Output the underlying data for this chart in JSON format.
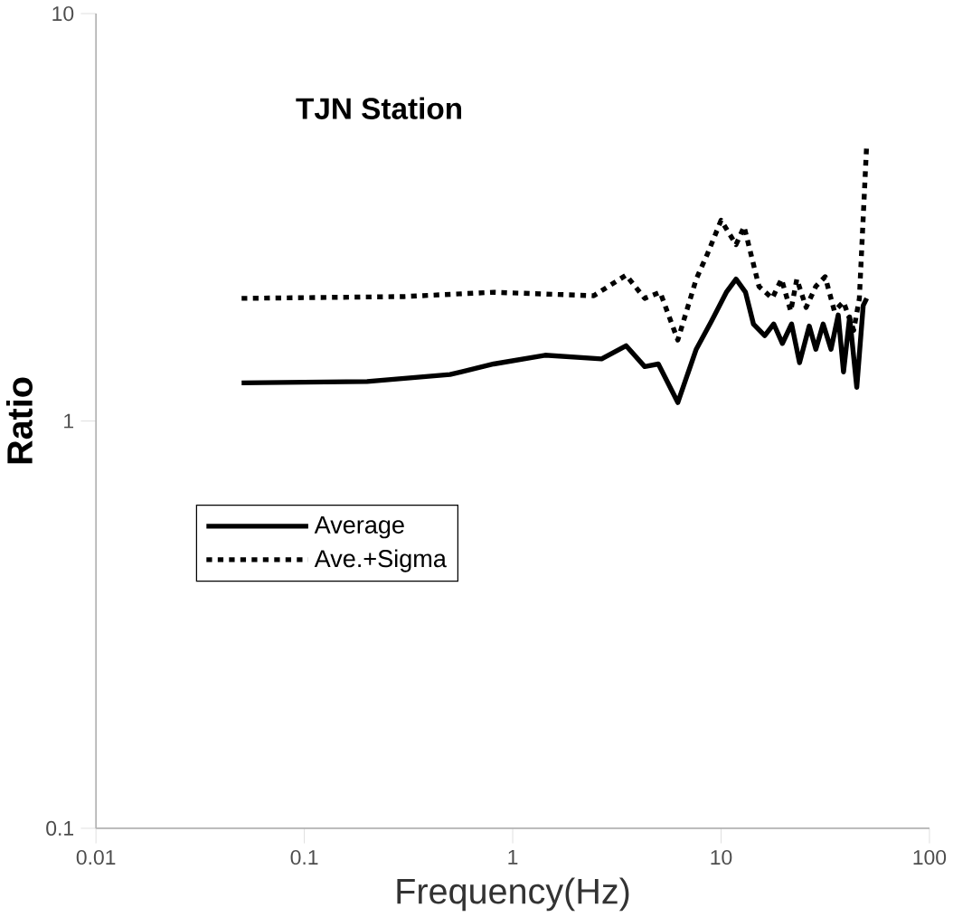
{
  "chart_data": {
    "type": "line",
    "title": "TJN Station",
    "xlabel": "Frequency(Hz)",
    "ylabel": "Ratio",
    "log": "xy",
    "xlim": [
      0.01,
      100
    ],
    "ylim": [
      0.1,
      10
    ],
    "xticks": [
      0.01,
      0.1,
      1,
      10,
      100
    ],
    "yticks": [
      0.1,
      1,
      10
    ],
    "grid": false,
    "legend": "left",
    "marker": "none",
    "series": [
      {
        "name": "Average",
        "color": "#000000",
        "line_style": "solid",
        "x": [
          0.05,
          0.2,
          0.5,
          0.81,
          1.43,
          2.67,
          3.5,
          4.3,
          5.0,
          6.2,
          7.6,
          9.0,
          10.6,
          11.8,
          13.1,
          14.3,
          16.2,
          17.9,
          19.7,
          21.8,
          23.8,
          26.5,
          28.5,
          30.9,
          33.7,
          36.5,
          38.7,
          41.4,
          44.8,
          48.1,
          50
        ],
        "values": [
          1.24,
          1.25,
          1.3,
          1.38,
          1.45,
          1.42,
          1.53,
          1.36,
          1.38,
          1.11,
          1.5,
          1.76,
          2.07,
          2.23,
          2.07,
          1.73,
          1.62,
          1.73,
          1.55,
          1.73,
          1.39,
          1.71,
          1.5,
          1.73,
          1.5,
          1.82,
          1.32,
          1.8,
          1.21,
          1.92,
          2.0
        ]
      },
      {
        "name": "Ave.+Sigma",
        "color": "#000000",
        "line_style": "dashed",
        "x": [
          0.05,
          0.3,
          0.81,
          2.45,
          3.5,
          4.3,
          5.1,
          6.2,
          7.6,
          8.6,
          10,
          11.8,
          12.9,
          15.2,
          17.6,
          19.5,
          21.6,
          23.1,
          25.6,
          28.5,
          31.6,
          35.0,
          38.7,
          43.3,
          46.1,
          50
        ],
        "values": [
          2.0,
          2.02,
          2.07,
          2.03,
          2.28,
          2.0,
          2.07,
          1.58,
          2.23,
          2.57,
          3.11,
          2.71,
          3.0,
          2.14,
          2.0,
          2.23,
          1.86,
          2.23,
          1.9,
          2.14,
          2.26,
          1.86,
          1.96,
          1.67,
          2.0,
          4.8
        ]
      }
    ]
  }
}
